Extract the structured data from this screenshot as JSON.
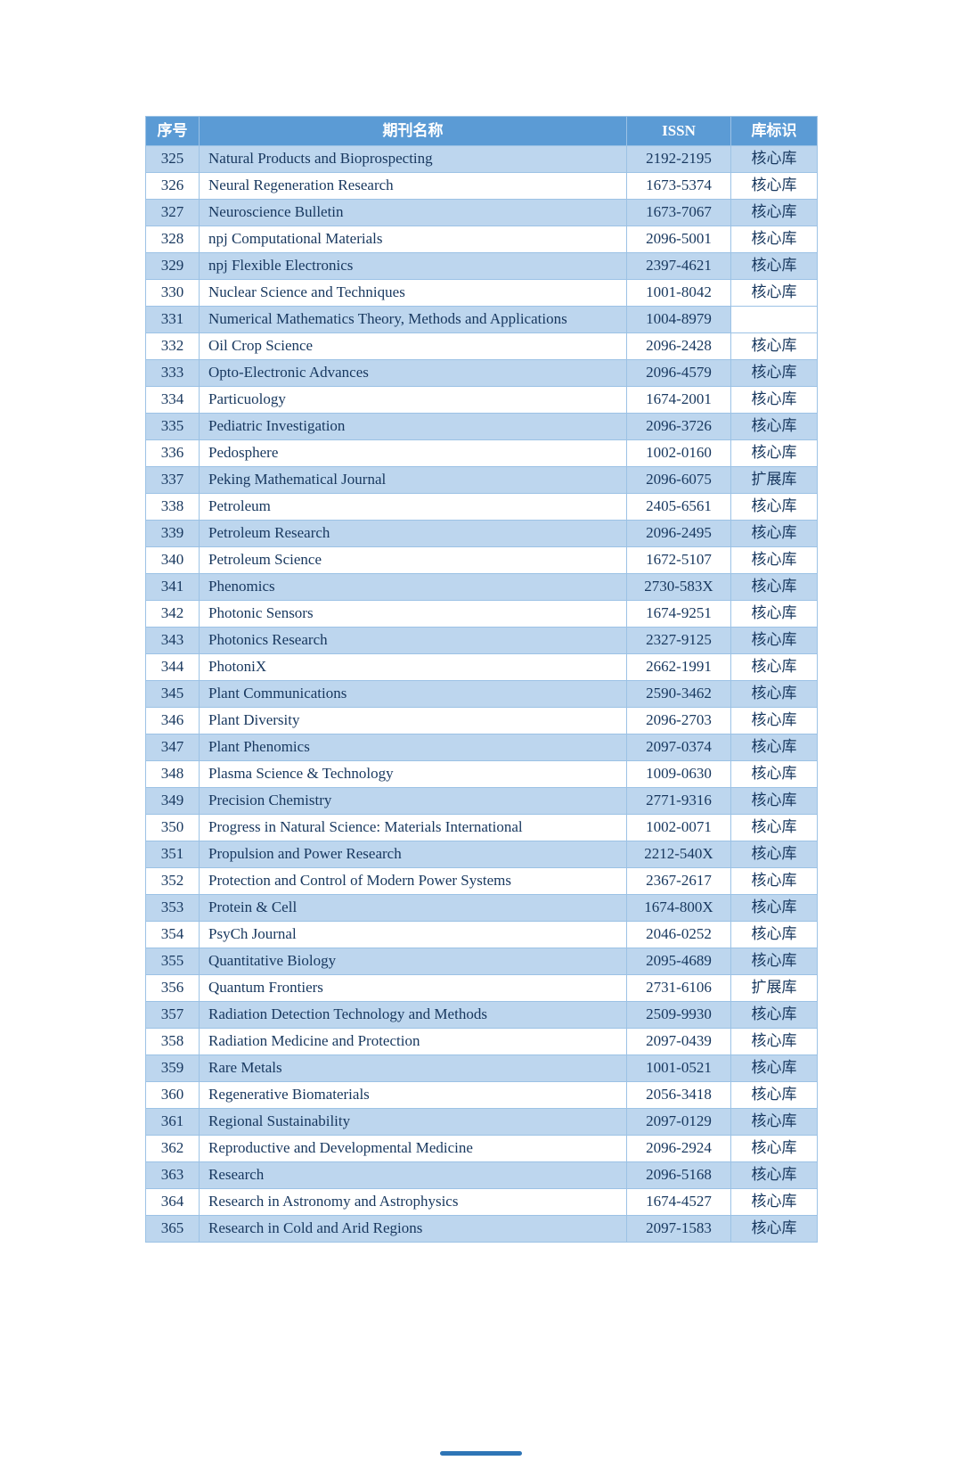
{
  "colors": {
    "header-bg": "#5b9bd5",
    "shade-bg": "#bdd6ee",
    "border": "#9cc2e5",
    "text": "#17375e",
    "header-text": "#ffffff",
    "footer-bar": "#2e75b6"
  },
  "table": {
    "columns": [
      "序号",
      "期刊名称",
      "ISSN",
      "库标识"
    ],
    "rows": [
      {
        "no": "325",
        "name": "Natural Products and Bioprospecting",
        "issn": "2192-2195",
        "marker": "核心库"
      },
      {
        "no": "326",
        "name": "Neural Regeneration Research",
        "issn": "1673-5374",
        "marker": "核心库"
      },
      {
        "no": "327",
        "name": "Neuroscience Bulletin",
        "issn": "1673-7067",
        "marker": "核心库"
      },
      {
        "no": "328",
        "name": "npj Computational Materials",
        "issn": "2096-5001",
        "marker": "核心库"
      },
      {
        "no": "329",
        "name": "npj Flexible Electronics",
        "issn": "2397-4621",
        "marker": "核心库"
      },
      {
        "no": "330",
        "name": "Nuclear Science and Techniques",
        "issn": "1001-8042",
        "marker": "核心库"
      },
      {
        "no": "331",
        "name": "Numerical Mathematics Theory, Methods and Applications",
        "issn": "1004-8979",
        "marker": ""
      },
      {
        "no": "332",
        "name": "Oil Crop Science",
        "issn": "2096-2428",
        "marker": "核心库"
      },
      {
        "no": "333",
        "name": "Opto-Electronic Advances",
        "issn": "2096-4579",
        "marker": "核心库"
      },
      {
        "no": "334",
        "name": "Particuology",
        "issn": "1674-2001",
        "marker": "核心库"
      },
      {
        "no": "335",
        "name": "Pediatric Investigation",
        "issn": "2096-3726",
        "marker": "核心库"
      },
      {
        "no": "336",
        "name": "Pedosphere",
        "issn": "1002-0160",
        "marker": "核心库"
      },
      {
        "no": "337",
        "name": "Peking Mathematical Journal",
        "issn": "2096-6075",
        "marker": "扩展库"
      },
      {
        "no": "338",
        "name": "Petroleum",
        "issn": "2405-6561",
        "marker": "核心库"
      },
      {
        "no": "339",
        "name": "Petroleum Research",
        "issn": "2096-2495",
        "marker": "核心库"
      },
      {
        "no": "340",
        "name": "Petroleum Science",
        "issn": "1672-5107",
        "marker": "核心库"
      },
      {
        "no": "341",
        "name": "Phenomics",
        "issn": "2730-583X",
        "marker": "核心库"
      },
      {
        "no": "342",
        "name": "Photonic Sensors",
        "issn": "1674-9251",
        "marker": "核心库"
      },
      {
        "no": "343",
        "name": "Photonics Research",
        "issn": "2327-9125",
        "marker": "核心库"
      },
      {
        "no": "344",
        "name": "PhotoniX",
        "issn": "2662-1991",
        "marker": "核心库"
      },
      {
        "no": "345",
        "name": "Plant Communications",
        "issn": "2590-3462",
        "marker": "核心库"
      },
      {
        "no": "346",
        "name": "Plant Diversity",
        "issn": "2096-2703",
        "marker": "核心库"
      },
      {
        "no": "347",
        "name": "Plant Phenomics",
        "issn": "2097-0374",
        "marker": "核心库"
      },
      {
        "no": "348",
        "name": "Plasma Science & Technology",
        "issn": "1009-0630",
        "marker": "核心库"
      },
      {
        "no": "349",
        "name": "Precision Chemistry",
        "issn": "2771-9316",
        "marker": "核心库"
      },
      {
        "no": "350",
        "name": "Progress in Natural Science: Materials International",
        "issn": "1002-0071",
        "marker": "核心库"
      },
      {
        "no": "351",
        "name": "Propulsion and Power Research",
        "issn": "2212-540X",
        "marker": "核心库"
      },
      {
        "no": "352",
        "name": "Protection and Control of Modern Power Systems",
        "issn": "2367-2617",
        "marker": "核心库"
      },
      {
        "no": "353",
        "name": "Protein & Cell",
        "issn": "1674-800X",
        "marker": "核心库"
      },
      {
        "no": "354",
        "name": "PsyCh Journal",
        "issn": "2046-0252",
        "marker": "核心库"
      },
      {
        "no": "355",
        "name": "Quantitative Biology",
        "issn": "2095-4689",
        "marker": "核心库"
      },
      {
        "no": "356",
        "name": "Quantum Frontiers",
        "issn": "2731-6106",
        "marker": "扩展库"
      },
      {
        "no": "357",
        "name": "Radiation Detection Technology and Methods",
        "issn": "2509-9930",
        "marker": "核心库"
      },
      {
        "no": "358",
        "name": "Radiation Medicine and Protection",
        "issn": "2097-0439",
        "marker": "核心库"
      },
      {
        "no": "359",
        "name": "Rare Metals",
        "issn": "1001-0521",
        "marker": "核心库"
      },
      {
        "no": "360",
        "name": "Regenerative Biomaterials",
        "issn": "2056-3418",
        "marker": "核心库"
      },
      {
        "no": "361",
        "name": "Regional Sustainability",
        "issn": "2097-0129",
        "marker": "核心库"
      },
      {
        "no": "362",
        "name": "Reproductive and Developmental Medicine",
        "issn": "2096-2924",
        "marker": "核心库"
      },
      {
        "no": "363",
        "name": "Research",
        "issn": "2096-5168",
        "marker": "核心库"
      },
      {
        "no": "364",
        "name": "Research in Astronomy and Astrophysics",
        "issn": "1674-4527",
        "marker": "核心库"
      },
      {
        "no": "365",
        "name": "Research in Cold and Arid Regions",
        "issn": "2097-1583",
        "marker": "核心库"
      }
    ]
  }
}
